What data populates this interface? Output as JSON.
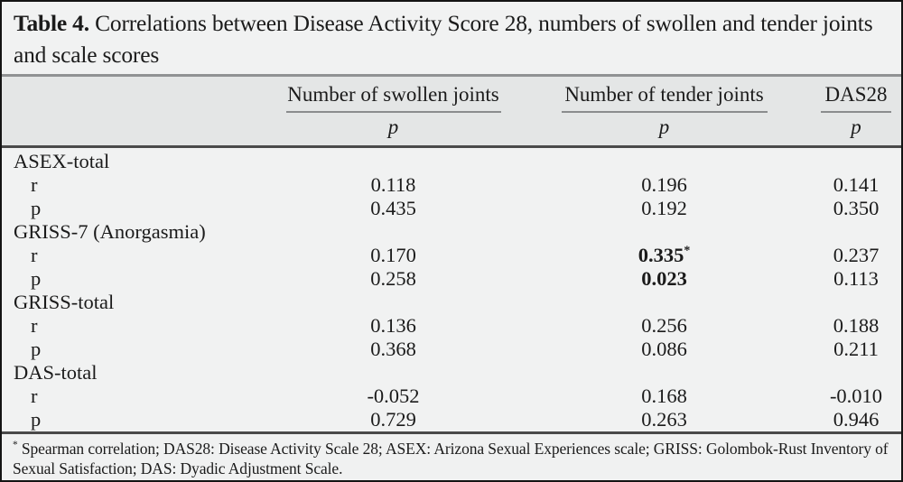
{
  "title": {
    "label": "Table 4.",
    "text": " Correlations between Disease Activity Score 28, numbers of swollen and tender joints and scale scores"
  },
  "table": {
    "column_headers": [
      {
        "label": "Number of swollen joints",
        "sub": "p"
      },
      {
        "label": "Number of tender joints",
        "sub": "p"
      },
      {
        "label": "DAS28",
        "sub": "p"
      }
    ],
    "rows": [
      {
        "type": "section",
        "label": "ASEX-total",
        "values": [
          "",
          "",
          ""
        ]
      },
      {
        "type": "data",
        "label": "r",
        "values": [
          "0.118",
          "0.196",
          "0.141"
        ]
      },
      {
        "type": "data",
        "label": "p",
        "values": [
          "0.435",
          "0.192",
          "0.350"
        ]
      },
      {
        "type": "section",
        "label": "GRISS-7 (Anorgasmia)",
        "values": [
          "",
          "",
          ""
        ]
      },
      {
        "type": "data",
        "label": "r",
        "values": [
          "0.170",
          "0.335",
          "0.237"
        ],
        "bold": [
          false,
          true,
          false
        ],
        "sup": [
          "",
          "*",
          ""
        ]
      },
      {
        "type": "data",
        "label": "p",
        "values": [
          "0.258",
          "0.023",
          "0.113"
        ],
        "bold": [
          false,
          true,
          false
        ]
      },
      {
        "type": "section",
        "label": "GRISS-total",
        "values": [
          "",
          "",
          ""
        ]
      },
      {
        "type": "data",
        "label": "r",
        "values": [
          "0.136",
          "0.256",
          "0.188"
        ]
      },
      {
        "type": "data",
        "label": "p",
        "values": [
          "0.368",
          "0.086",
          "0.211"
        ]
      },
      {
        "type": "section",
        "label": "DAS-total",
        "values": [
          "",
          "",
          ""
        ]
      },
      {
        "type": "data",
        "label": "r",
        "values": [
          "-0.052",
          "0.168",
          "-0.010"
        ]
      },
      {
        "type": "data",
        "label": "p",
        "values": [
          "0.729",
          "0.263",
          "0.946"
        ]
      }
    ]
  },
  "footnote": {
    "marker": "*",
    "text": " Spearman correlation; DAS28: Disease Activity Scale 28; ASEX: Arizona Sexual Experiences scale; GRISS: Golombok-Rust Inventory of Sexual Satisfaction; DAS: Dyadic Adjustment Scale."
  },
  "colors": {
    "outer_border": "#141414",
    "page_bg": "#f1f2f2",
    "header_bg": "#e4e6e6",
    "rule_gray": "#909294",
    "rule_dark": "#4a4a4a",
    "text": "#1b1b1b"
  }
}
